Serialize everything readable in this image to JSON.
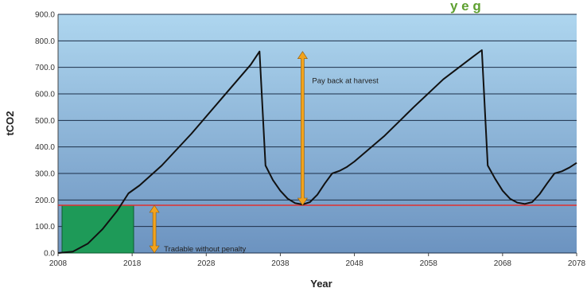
{
  "chart_data": {
    "type": "line",
    "title_fragment": "y e g",
    "xlabel": "Year",
    "ylabel": "tCO2",
    "xlim": [
      2008,
      2078
    ],
    "ylim": [
      0,
      900
    ],
    "x_ticks": [
      "2008",
      "2018",
      "2028",
      "2038",
      "2048",
      "2058",
      "2068",
      "2078"
    ],
    "y_ticks": [
      "0.0",
      "100.0",
      "200.0",
      "300.0",
      "400.0",
      "500.0",
      "600.0",
      "700.0",
      "800.0",
      "900.0"
    ],
    "grid": true,
    "series": [
      {
        "x": [
          2008,
          2010,
          2012,
          2014,
          2016,
          2017.5,
          2019,
          2022,
          2026,
          2030,
          2034,
          2035.2,
          2036,
          2037,
          2038,
          2039,
          2040,
          2041,
          2042,
          2043,
          2044,
          2045,
          2046,
          2047,
          2048,
          2052,
          2056,
          2060,
          2064,
          2065.2,
          2066,
          2067,
          2068,
          2069,
          2070,
          2071,
          2072,
          2073,
          2074,
          2075,
          2076,
          2077,
          2078
        ],
        "y": [
          0,
          5,
          35,
          90,
          160,
          225,
          255,
          330,
          450,
          580,
          710,
          760,
          330,
          275,
          235,
          205,
          188,
          183,
          192,
          220,
          262,
          300,
          310,
          325,
          345,
          440,
          550,
          655,
          740,
          765,
          330,
          280,
          235,
          205,
          190,
          185,
          192,
          222,
          262,
          300,
          308,
          322,
          340
        ]
      }
    ],
    "threshold": {
      "y": 180,
      "color": "#e03030"
    },
    "tradable_area": {
      "x": [
        2008,
        2018.2
      ],
      "y": [
        0,
        180
      ],
      "color": "#1e9a58"
    },
    "annotations": [
      {
        "text": "Pay back at harvest",
        "arrow_x": 2041,
        "y_from": 180,
        "y_to": 760
      },
      {
        "text": "Tradable without penalty",
        "arrow_x": 2021,
        "y_from": 0,
        "y_to": 180
      }
    ],
    "colors": {
      "bg_top": "#aed6ef",
      "bg_bottom": "#6c93c0",
      "arrow": "#f2a31c",
      "line": "#111111",
      "title_fragment": "#5ea030"
    }
  }
}
